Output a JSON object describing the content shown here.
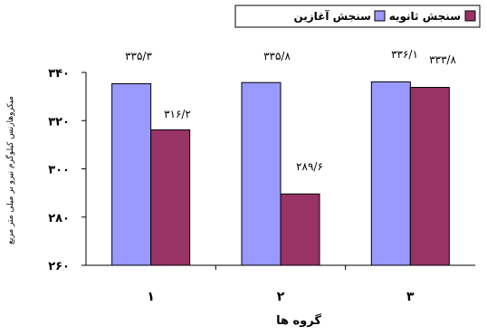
{
  "chart_data": {
    "type": "bar",
    "categories": [
      "۱",
      "۲",
      "۳"
    ],
    "series": [
      {
        "name": "سنجش آغازین",
        "color": "#9999ff",
        "values": [
          335.3,
          335.8,
          336.1
        ],
        "labels": [
          "۳۳۵/۳",
          "۳۳۵/۸",
          "۳۳۶/۱"
        ]
      },
      {
        "name": "سنجش ثانویه",
        "color": "#993366",
        "values": [
          316.2,
          289.6,
          333.8
        ],
        "labels": [
          "۳۱۶/۲",
          "۲۸۹/۶",
          "۳۳۳/۸"
        ]
      }
    ],
    "xlabel": "گروه ها",
    "ylabel": "میکروهارنس کیلوگرم نیرو بر میلی متر مربع",
    "ylim": [
      260,
      340
    ],
    "yticks": [
      {
        "value": 260,
        "label": "۲۶۰"
      },
      {
        "value": 280,
        "label": "۲۸۰"
      },
      {
        "value": 300,
        "label": "۳۰۰"
      },
      {
        "value": 320,
        "label": "۳۲۰"
      },
      {
        "value": 340,
        "label": "۳۴۰"
      }
    ],
    "grid": false,
    "legend_position": "top-right"
  }
}
